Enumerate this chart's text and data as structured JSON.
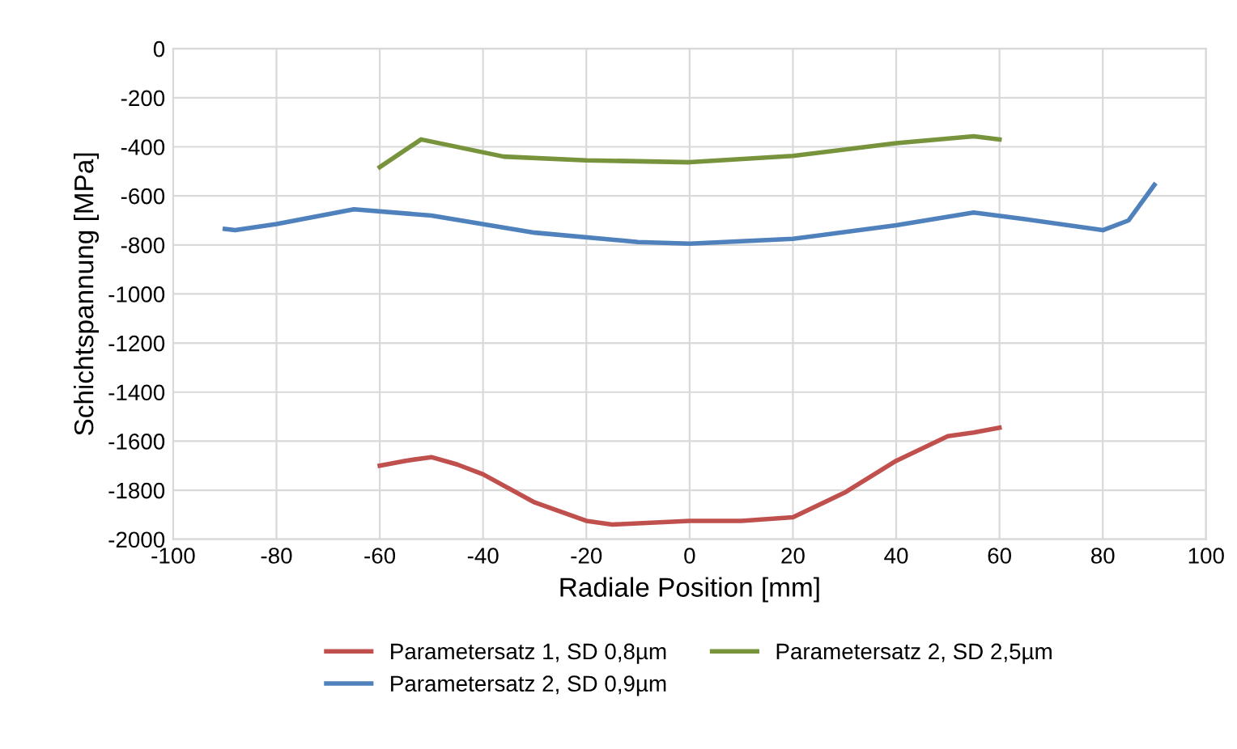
{
  "chart_data": {
    "type": "line",
    "xlabel": "Radiale Position [mm]",
    "ylabel": "Schichtspannung [MPa]",
    "xlim": [
      -100,
      100
    ],
    "xticks": [
      -100,
      -80,
      -60,
      -40,
      -20,
      0,
      20,
      40,
      60,
      80,
      100
    ],
    "ylim": [
      -2000,
      0
    ],
    "yticks": [
      -2000,
      -1800,
      -1600,
      -1400,
      -1200,
      -1000,
      -800,
      -600,
      -400,
      -200,
      0
    ],
    "grid": true,
    "legend": "bottom",
    "marker": "none",
    "line_style": "solid",
    "series": [
      {
        "name": "Parametersatz 1, SD 0,8µm",
        "color": "#c0504d",
        "x": [
          -60,
          -55,
          -50,
          -45,
          -40,
          -30,
          -20,
          -15,
          0,
          10,
          20,
          30,
          40,
          50,
          55,
          60
        ],
        "values": [
          -1700,
          -1680,
          -1665,
          -1695,
          -1735,
          -1850,
          -1925,
          -1940,
          -1925,
          -1925,
          -1910,
          -1810,
          -1680,
          -1580,
          -1565,
          -1545
        ]
      },
      {
        "name": "Parametersatz 2, SD 0,9µm",
        "color": "#4f81bd",
        "x": [
          -90,
          -88,
          -80,
          -65,
          -50,
          -30,
          -10,
          0,
          20,
          40,
          55,
          65,
          80,
          85,
          90
        ],
        "values": [
          -735,
          -740,
          -715,
          -655,
          -680,
          -750,
          -788,
          -795,
          -775,
          -720,
          -668,
          -695,
          -740,
          -700,
          -555
        ]
      },
      {
        "name": "Parametersatz 2, SD 2,5µm",
        "color": "#77933c",
        "x": [
          -60,
          -52,
          -36,
          -20,
          0,
          20,
          40,
          55,
          60
        ],
        "values": [
          -483,
          -370,
          -440,
          -455,
          -463,
          -437,
          -385,
          -357,
          -370
        ]
      }
    ]
  }
}
